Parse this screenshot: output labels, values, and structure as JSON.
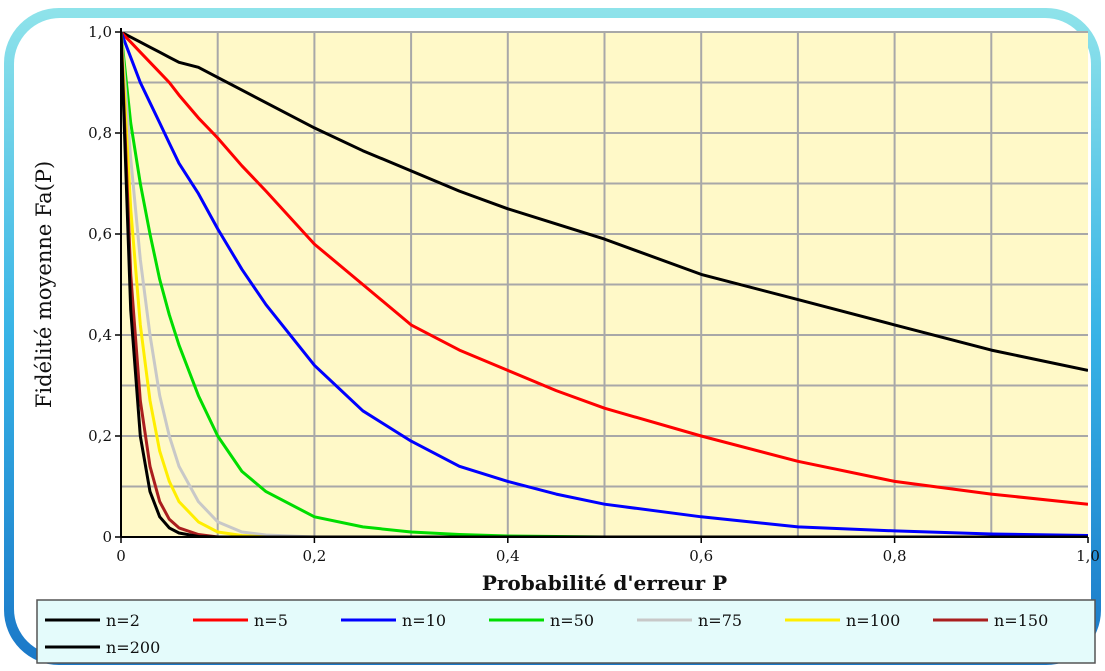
{
  "chart_data": {
    "type": "line",
    "title": "",
    "xlabel": "Probabilité d'erreur P",
    "ylabel": "Fidélité moyenne Fa(P)",
    "xlim": [
      0,
      1
    ],
    "ylim": [
      0,
      1
    ],
    "grid": true,
    "legend_position": "bottom",
    "xticks": [
      0,
      0.2,
      0.4,
      0.6,
      0.8,
      1.0
    ],
    "xtick_labels": [
      "0",
      "0,2",
      "0,4",
      "0,6",
      "0,8",
      "1,0"
    ],
    "yticks": [
      0,
      0.2,
      0.4,
      0.6,
      0.8,
      1.0
    ],
    "ytick_labels": [
      "0",
      "0,2",
      "0,4",
      "0,6",
      "0,8",
      "1,0"
    ],
    "x": [
      0,
      0.01,
      0.02,
      0.03,
      0.04,
      0.05,
      0.06,
      0.08,
      0.1,
      0.125,
      0.15,
      0.2,
      0.25,
      0.3,
      0.35,
      0.4,
      0.45,
      0.5,
      0.6,
      0.7,
      0.8,
      0.9,
      1.0
    ],
    "series": [
      {
        "name": "n=2",
        "color": "#000000",
        "values": [
          1.0,
          0.99,
          0.98,
          0.97,
          0.96,
          0.95,
          0.94,
          0.93,
          0.91,
          0.885,
          0.86,
          0.81,
          0.765,
          0.725,
          0.685,
          0.65,
          0.62,
          0.59,
          0.52,
          0.47,
          0.42,
          0.37,
          0.33
        ]
      },
      {
        "name": "n=5",
        "color": "#ff0000",
        "values": [
          1.0,
          0.98,
          0.96,
          0.94,
          0.92,
          0.9,
          0.875,
          0.83,
          0.79,
          0.735,
          0.685,
          0.58,
          0.5,
          0.42,
          0.37,
          0.33,
          0.29,
          0.255,
          0.2,
          0.15,
          0.11,
          0.085,
          0.065
        ]
      },
      {
        "name": "n=10",
        "color": "#0000ff",
        "values": [
          1.0,
          0.95,
          0.9,
          0.86,
          0.82,
          0.78,
          0.74,
          0.68,
          0.61,
          0.53,
          0.46,
          0.34,
          0.25,
          0.19,
          0.14,
          0.11,
          0.085,
          0.065,
          0.04,
          0.02,
          0.012,
          0.006,
          0.003
        ]
      },
      {
        "name": "n=50",
        "color": "#00dd00",
        "values": [
          1.0,
          0.82,
          0.7,
          0.6,
          0.51,
          0.44,
          0.38,
          0.28,
          0.2,
          0.13,
          0.09,
          0.04,
          0.02,
          0.01,
          0.005,
          0.002,
          0.001,
          0.0,
          0.0,
          0.0,
          0.0,
          0.0,
          0.0
        ]
      },
      {
        "name": "n=75",
        "color": "#c8c8c8",
        "values": [
          1.0,
          0.75,
          0.55,
          0.4,
          0.28,
          0.2,
          0.14,
          0.07,
          0.03,
          0.01,
          0.004,
          0.0,
          0.0,
          0.0,
          0.0,
          0.0,
          0.0,
          0.0,
          0.0,
          0.0,
          0.0,
          0.0,
          0.0
        ]
      },
      {
        "name": "n=100",
        "color": "#ffee00",
        "values": [
          1.0,
          0.65,
          0.42,
          0.27,
          0.17,
          0.11,
          0.07,
          0.03,
          0.01,
          0.003,
          0.0,
          0.0,
          0.0,
          0.0,
          0.0,
          0.0,
          0.0,
          0.0,
          0.0,
          0.0,
          0.0,
          0.0,
          0.0
        ]
      },
      {
        "name": "n=150",
        "color": "#aa1e1e",
        "values": [
          1.0,
          0.52,
          0.27,
          0.14,
          0.07,
          0.035,
          0.018,
          0.005,
          0.0,
          0.0,
          0.0,
          0.0,
          0.0,
          0.0,
          0.0,
          0.0,
          0.0,
          0.0,
          0.0,
          0.0,
          0.0,
          0.0,
          0.0
        ]
      },
      {
        "name": "n=200",
        "color": "#000000",
        "values": [
          1.0,
          0.45,
          0.2,
          0.09,
          0.04,
          0.018,
          0.008,
          0.001,
          0.0,
          0.0,
          0.0,
          0.0,
          0.0,
          0.0,
          0.0,
          0.0,
          0.0,
          0.0,
          0.0,
          0.0,
          0.0,
          0.0,
          0.0
        ]
      }
    ]
  },
  "colors": {
    "plot_background": "#fff9c8",
    "legend_background": "#e4fbfb",
    "frame_outer": "#1e8fd6",
    "frame_inner": "#9ee8f0",
    "grid": "#a8a8a8"
  }
}
